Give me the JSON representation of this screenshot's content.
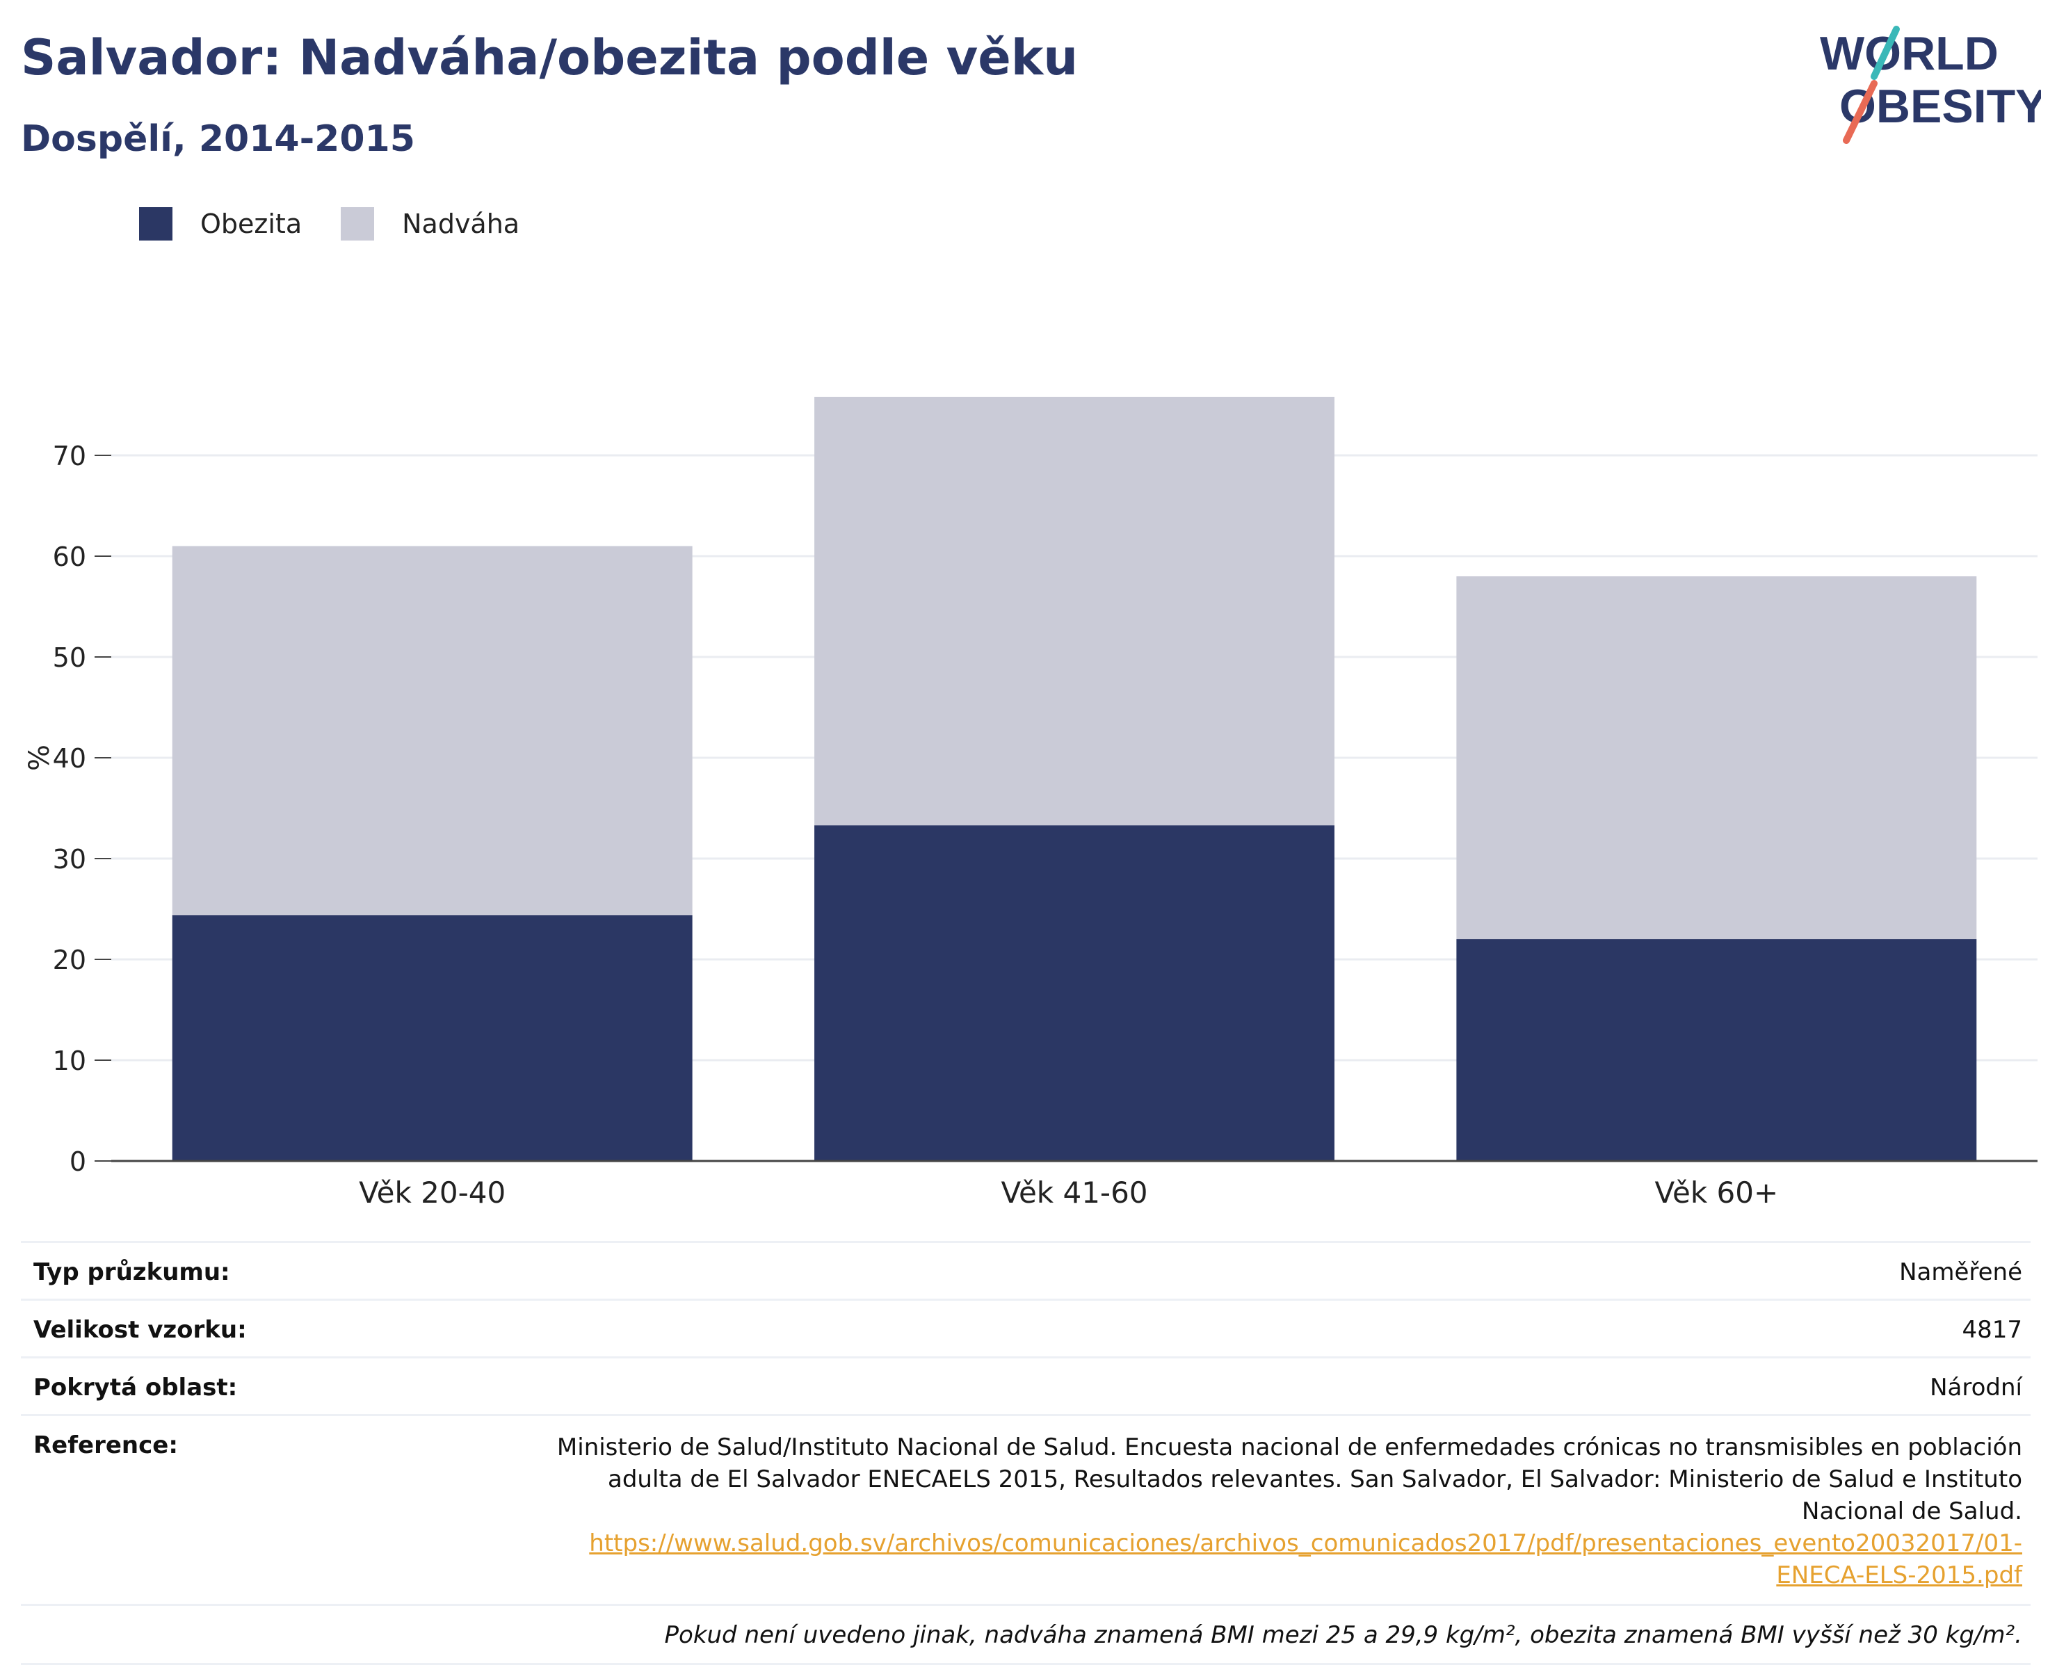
{
  "header": {
    "title": "Salvador: Nadváha/obezita podle věku",
    "subtitle": "Dospělí, 2014-2015"
  },
  "logo": {
    "line1": "WORLD",
    "line2": "OBESITY"
  },
  "colors": {
    "obesity": "#2b3764",
    "overweight": "#cacbd7",
    "brand": "#2b3868",
    "teal": "#3ab8b8",
    "coral": "#e86a55"
  },
  "chart_data": {
    "type": "bar",
    "stacked": true,
    "categories": [
      "Věk 20-40",
      "Věk 41-60",
      "Věk 60+"
    ],
    "series": [
      {
        "name": "Obezita",
        "values": [
          24.4,
          33.3,
          22.0
        ]
      },
      {
        "name": "Nadváha",
        "values": [
          36.6,
          42.5,
          36.0
        ]
      }
    ],
    "ylabel": "%",
    "xlabel": "",
    "ylim": [
      0,
      80
    ],
    "yticks": [
      0,
      10,
      20,
      30,
      40,
      50,
      60,
      70
    ],
    "grid": true,
    "legend_position": "top-left"
  },
  "info": {
    "rows": [
      {
        "label": "Typ průzkumu:",
        "value": "Naměřené"
      },
      {
        "label": "Velikost vzorku:",
        "value": "4817"
      },
      {
        "label": "Pokrytá oblast:",
        "value": "Národní"
      }
    ],
    "reference_label": "Reference:",
    "reference_text": "Ministerio de Salud/Instituto Nacional de Salud. Encuesta nacional de enfermedades crónicas no transmisibles en población adulta de El Salvador ENECAELS 2015, Resultados relevantes. San Salvador, El Salvador: Ministerio de Salud e Instituto Nacional de Salud.",
    "reference_link": "https://www.salud.gob.sv/archivos/comunicaciones/archivos_comunicados2017/pdf/presentaciones_evento20032017/01-ENECA-ELS-2015.pdf",
    "note": "Pokud není uvedeno jinak, nadváha znamená BMI mezi 25 a 29,9 kg/m², obezita znamená BMI vyšší než 30 kg/m²."
  }
}
